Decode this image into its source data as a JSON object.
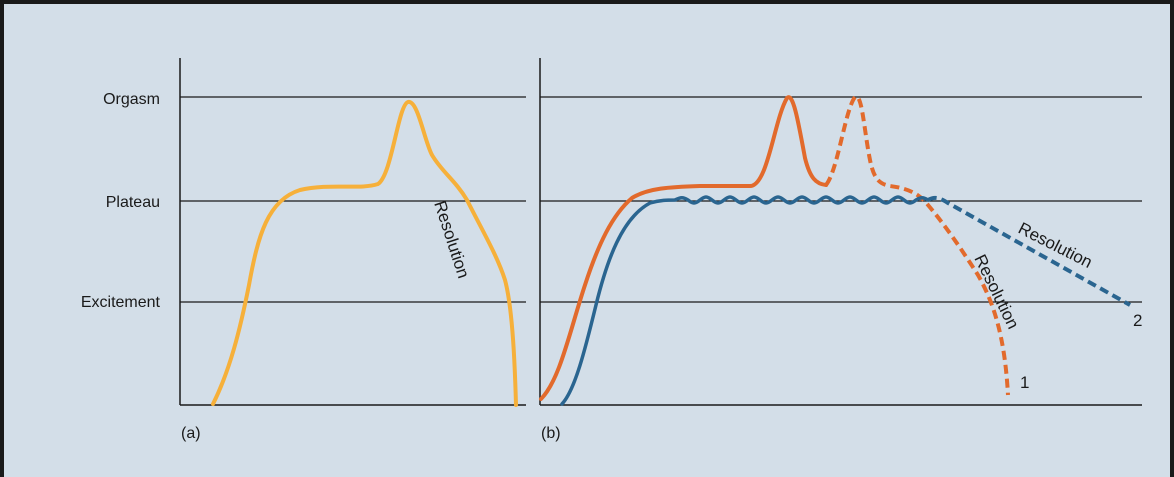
{
  "figure": {
    "colors": {
      "background": "#d3dee8",
      "frame": "#1a1a1a",
      "gridline": "#1a1a1a",
      "yellow_curve": "#f6b03a",
      "orange_curve": "#e26a2c",
      "blue_curve": "#2a6590"
    },
    "y_levels": [
      "Orgasm",
      "Plateau",
      "Excitement"
    ],
    "panel_a": {
      "label": "(a)",
      "resolution_label": "Resolution"
    },
    "panel_b": {
      "label": "(b)",
      "resolution_label_1": "Resolution",
      "resolution_label_2": "Resolution",
      "curve_1_number": "1",
      "curve_2_number": "2"
    }
  }
}
